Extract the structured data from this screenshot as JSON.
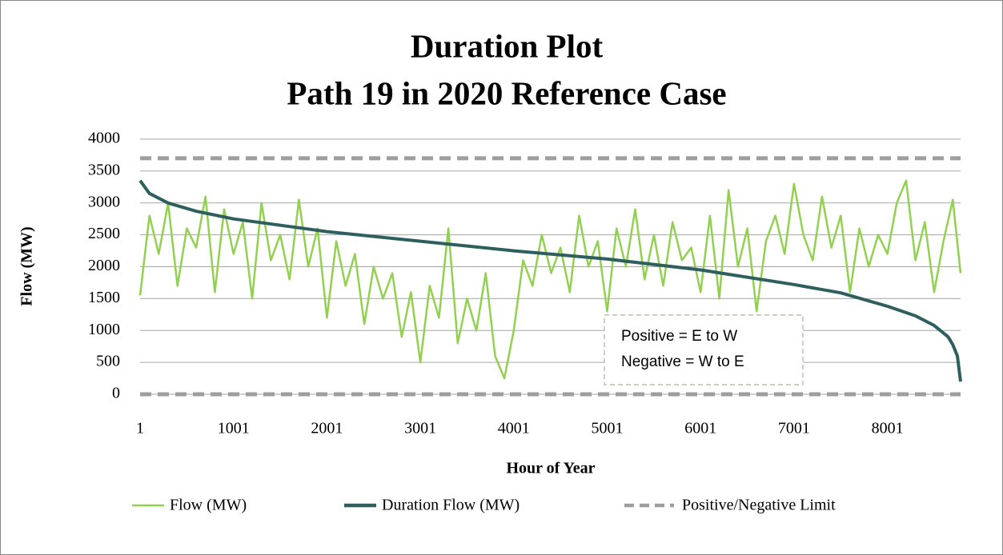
{
  "chart_data": {
    "type": "line",
    "title": [
      "Duration Plot",
      "Path 19 in 2020 Reference Case"
    ],
    "x_label": "Hour of Year",
    "y_label": "Flow (MW)",
    "annotation": [
      "Positive = E to W",
      "Negative = W to E"
    ],
    "xlim": [
      1,
      8784
    ],
    "xticks": [
      1,
      1001,
      2001,
      3001,
      4001,
      5001,
      6001,
      7001,
      8001
    ],
    "ylim": [
      0,
      4000
    ],
    "yticks": [
      0,
      500,
      1000,
      1500,
      2000,
      2500,
      3000,
      3500,
      4000
    ],
    "grid": true,
    "legend": "bottom",
    "series": [
      {
        "name": "Flow (MW)",
        "color": "#92d050",
        "style": "solid",
        "x": [
          1,
          101,
          201,
          301,
          401,
          501,
          601,
          701,
          801,
          901,
          1001,
          1101,
          1201,
          1301,
          1401,
          1501,
          1601,
          1701,
          1801,
          1901,
          2001,
          2101,
          2201,
          2301,
          2401,
          2501,
          2601,
          2701,
          2801,
          2901,
          3001,
          3101,
          3201,
          3301,
          3401,
          3501,
          3601,
          3701,
          3801,
          3901,
          4001,
          4101,
          4201,
          4301,
          4401,
          4501,
          4601,
          4701,
          4801,
          4901,
          5001,
          5101,
          5201,
          5301,
          5401,
          5501,
          5601,
          5701,
          5801,
          5901,
          6001,
          6101,
          6201,
          6301,
          6401,
          6501,
          6601,
          6701,
          6801,
          6901,
          7001,
          7101,
          7201,
          7301,
          7401,
          7501,
          7601,
          7701,
          7801,
          7901,
          8001,
          8101,
          8201,
          8301,
          8401,
          8501,
          8601,
          8701,
          8784
        ],
        "values": [
          1550,
          2800,
          2200,
          3000,
          1700,
          2600,
          2300,
          3100,
          1600,
          2900,
          2200,
          2700,
          1500,
          3000,
          2100,
          2500,
          1800,
          3050,
          2000,
          2600,
          1200,
          2400,
          1700,
          2200,
          1100,
          2000,
          1500,
          1900,
          900,
          1600,
          500,
          1700,
          1200,
          2600,
          800,
          1500,
          1000,
          1900,
          600,
          250,
          1000,
          2100,
          1700,
          2500,
          1900,
          2300,
          1600,
          2800,
          2000,
          2400,
          1300,
          2600,
          2000,
          2900,
          1800,
          2500,
          1700,
          2700,
          2100,
          2300,
          1600,
          2800,
          1500,
          3200,
          2000,
          2600,
          1300,
          2400,
          2800,
          2200,
          3300,
          2500,
          2100,
          3100,
          2300,
          2800,
          1600,
          2600,
          2000,
          2500,
          2200,
          3000,
          3350,
          2100,
          2700,
          1600,
          2400,
          3050,
          1900
        ]
      },
      {
        "name": "Duration Flow (MW)",
        "color": "#2e5e5e",
        "style": "solid",
        "x": [
          1,
          100,
          300,
          600,
          1000,
          2000,
          3000,
          4000,
          5000,
          6000,
          7000,
          7500,
          8000,
          8300,
          8500,
          8650,
          8700,
          8750,
          8784
        ],
        "values": [
          3350,
          3150,
          3000,
          2870,
          2750,
          2550,
          2400,
          2250,
          2120,
          1950,
          1720,
          1590,
          1380,
          1230,
          1080,
          900,
          780,
          600,
          200
        ]
      },
      {
        "name": "Positive/Negative Limit",
        "color": "#9e9e9e",
        "style": "dashed",
        "hlines": [
          3700,
          0
        ]
      }
    ]
  }
}
